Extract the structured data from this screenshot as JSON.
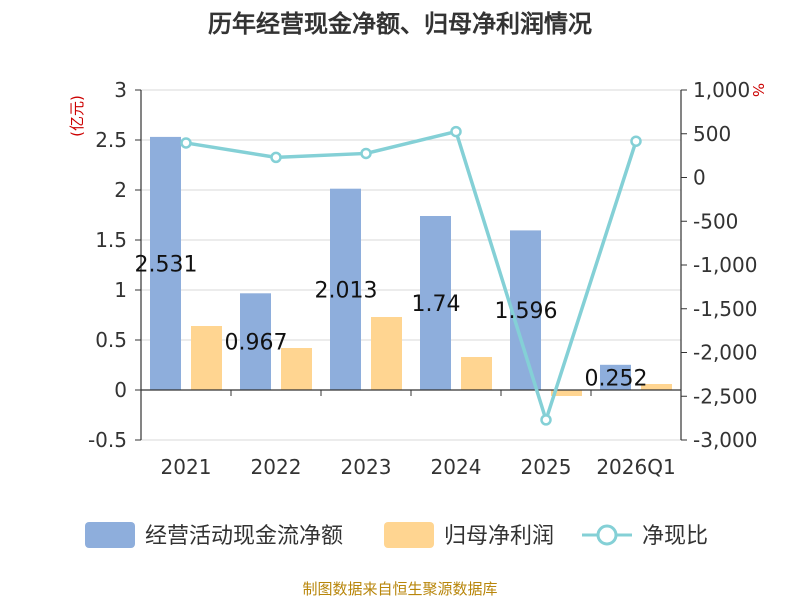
{
  "chart_data": {
    "type": "bar+line",
    "title": "历年经营现金净额、归母净利润情况",
    "categories": [
      "2021",
      "2022",
      "2023",
      "2024",
      "2025",
      "2026Q1"
    ],
    "left_unit": "(亿元)",
    "right_unit": "%",
    "left_ylim": [
      -0.5,
      3
    ],
    "left_ticks": [
      "3",
      "2.5",
      "2",
      "1.5",
      "1",
      "0.5",
      "0",
      "-0.5"
    ],
    "right_ylim": [
      -3000,
      1000
    ],
    "right_ticks": [
      "1,000",
      "500",
      "0",
      "-500",
      "-1,000",
      "-1,500",
      "-2,000",
      "-2,500",
      "-3,000"
    ],
    "series": [
      {
        "name": "经营活动现金流净额",
        "kind": "bar",
        "axis": "left",
        "color": "#8eaedc",
        "values": [
          2.531,
          0.967,
          2.013,
          1.74,
          1.596,
          0.252
        ],
        "labels": [
          "2.531",
          "0.967",
          "2.013",
          "1.74",
          "1.596",
          "0.252"
        ]
      },
      {
        "name": "归母净利润",
        "kind": "bar",
        "axis": "left",
        "color": "#ffd591",
        "values": [
          0.64,
          0.42,
          0.73,
          0.33,
          -0.06,
          0.06
        ]
      },
      {
        "name": "净现比",
        "kind": "line",
        "axis": "right",
        "color": "#84d0d6",
        "values": [
          395,
          230,
          275,
          525,
          -2770,
          415
        ]
      }
    ],
    "legend_position": "bottom",
    "grid": true
  },
  "footer": {
    "source": "制图数据来自恒生聚源数据库"
  }
}
